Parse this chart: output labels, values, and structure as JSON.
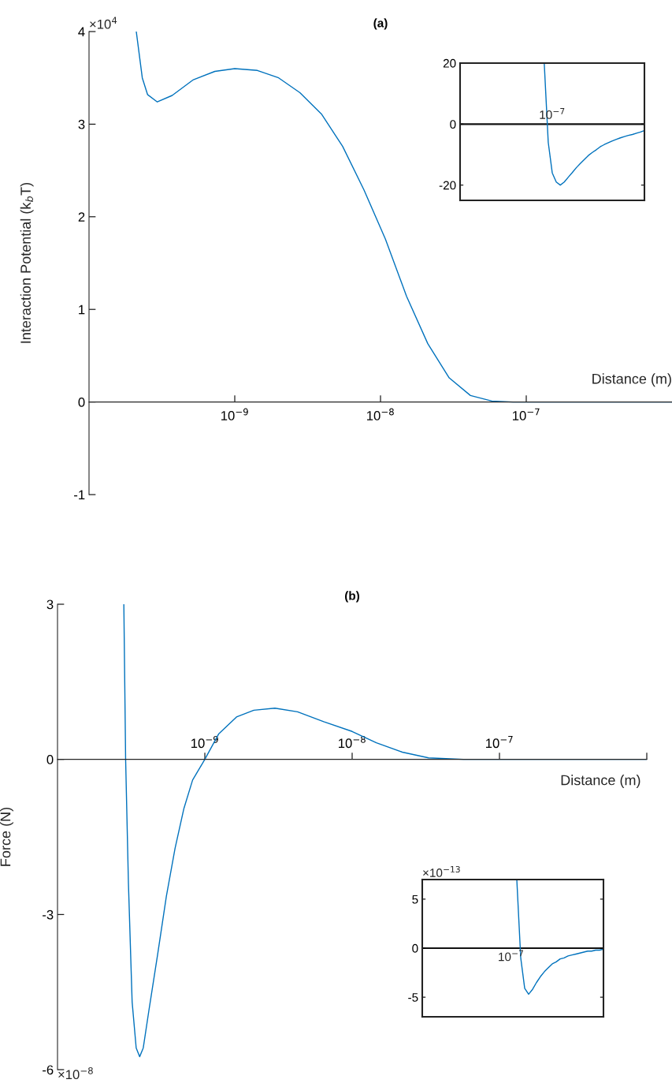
{
  "chart_data": [
    {
      "type": "line",
      "title": "(a)",
      "xlabel": "Distance (m)",
      "ylabel": "Interaction Potential (k$_{b}$T)",
      "annotations": [
        "×10$^{4}$"
      ],
      "log": "x",
      "grid": false,
      "xlim": [
        1e-10,
        1e-06
      ],
      "xticks": [
        {
          "value": 1e-09,
          "label": "10$^{−9}$"
        },
        {
          "value": 1e-08,
          "label": "10$^{−8}$"
        },
        {
          "value": 1e-07,
          "label": "10$^{−7}$"
        }
      ],
      "ylim": [
        -1,
        4
      ],
      "yticks": [
        -1,
        0,
        1,
        2,
        3,
        4
      ],
      "series": [
        {
          "color": "#0072bd",
          "x": [
            2.11e-10,
            2.32e-10,
            2.52e-10,
            2.94e-10,
            3.72e-10,
            5.2e-10,
            7.3e-10,
            1e-09,
            1.43e-09,
            2e-09,
            2.8e-09,
            3.93e-09,
            5.5e-09,
            7.7e-09,
            1.08e-08,
            1.51e-08,
            2.11e-08,
            2.96e-08,
            4.14e-08,
            5.8e-08,
            8.1e-08,
            1e-06
          ],
          "values": [
            4.0,
            3.5,
            3.32,
            3.24,
            3.31,
            3.48,
            3.57,
            3.6,
            3.58,
            3.5,
            3.34,
            3.11,
            2.76,
            2.29,
            1.76,
            1.14,
            0.63,
            0.26,
            0.07,
            0.01,
            0,
            0
          ]
        }
      ]
    },
    {
      "type": "line",
      "annotations": [
        "10$^{−7}$"
      ],
      "grid": false,
      "categories": [
        null,
        null,
        null,
        null,
        null,
        null,
        null,
        null,
        null,
        null,
        null,
        null,
        null,
        null,
        null,
        null,
        null,
        null,
        null,
        null,
        null,
        null,
        null,
        null,
        null,
        null,
        null,
        null,
        null,
        null,
        null,
        null,
        null,
        null,
        null,
        null,
        null,
        null,
        null,
        null,
        null,
        null,
        null,
        null,
        null,
        null,
        null
      ],
      "ylim": [
        -25,
        20
      ],
      "yticks": [
        -20,
        0,
        20
      ],
      "ref_lines": [
        {
          "axis": "y",
          "value": 0,
          "color": "#111111"
        }
      ],
      "series": [
        {
          "color": "#0072bd",
          "values": [
            null,
            null,
            null,
            null,
            null,
            null,
            null,
            null,
            null,
            null,
            null,
            null,
            null,
            null,
            null,
            null,
            null,
            null,
            null,
            null,
            null,
            20,
            -6,
            -16,
            -19,
            -20,
            -19,
            -17.4,
            -15.9,
            -14.3,
            -12.9,
            -11.6,
            -10.3,
            -9.3,
            -8.4,
            -7.4,
            -6.7,
            -6.1,
            -5.5,
            -5.0,
            -4.5,
            -4.1,
            -3.7,
            -3.4,
            -3.0,
            -2.6,
            -2.1
          ]
        }
      ]
    },
    {
      "type": "line",
      "title": "(b)",
      "xlabel": "Distance (m)",
      "ylabel": "Force (N)",
      "annotations": [
        "×10$^{−8}$"
      ],
      "log": "x",
      "grid": false,
      "xlim": [
        1e-10,
        1e-06
      ],
      "xticks": [
        {
          "value": 1e-09,
          "label": "10$^{−9}$"
        },
        {
          "value": 1e-08,
          "label": "10$^{−8}$"
        },
        {
          "value": 1e-07,
          "label": "10$^{−7}$"
        },
        {
          "value": 1e-06,
          "label": null
        }
      ],
      "ylim": [
        -6,
        3
      ],
      "yticks": [
        -6,
        -3,
        0,
        3
      ],
      "series": [
        {
          "color": "#0072bd",
          "x": [
            2.82e-10,
            2.9e-10,
            3.03e-10,
            3.21e-10,
            3.42e-10,
            3.61e-10,
            3.82e-10,
            4.17e-10,
            4.79e-10,
            5.48e-10,
            6.28e-10,
            7.21e-10,
            8.26e-10,
            1e-09,
            1.24e-09,
            1.64e-09,
            2.15e-09,
            2.99e-09,
            4.26e-09,
            6.41e-09,
            1e-08,
            1.46e-08,
            2.19e-08,
            3.3e-08,
            5.71e-08,
            1e-06
          ],
          "values": [
            3.0,
            0,
            -2.4,
            -4.69,
            -5.58,
            -5.75,
            -5.58,
            -4.86,
            -3.76,
            -2.65,
            -1.72,
            -0.95,
            -0.4,
            0,
            0.49,
            0.82,
            0.95,
            0.99,
            0.92,
            0.73,
            0.54,
            0.32,
            0.14,
            0.03,
            0,
            0
          ]
        }
      ]
    },
    {
      "type": "line",
      "annotations": [
        "×10$^{−13}$",
        "10$^{−7}$"
      ],
      "grid": false,
      "categories": [
        null,
        null,
        null,
        null,
        null,
        null,
        null,
        null,
        null,
        null,
        null,
        null,
        null,
        null,
        null,
        null,
        null,
        null,
        null,
        null,
        null,
        null,
        null,
        null,
        null,
        null,
        null,
        null,
        null,
        null,
        null,
        null,
        null,
        null,
        null,
        null,
        null,
        null,
        null,
        null,
        null,
        null,
        null,
        null,
        null,
        null,
        null
      ],
      "ylim": [
        -7,
        7
      ],
      "yticks": [
        -5,
        0,
        5
      ],
      "ref_lines": [
        {
          "axis": "y",
          "value": 0,
          "color": "#111111"
        }
      ],
      "series": [
        {
          "color": "#0072bd",
          "values": [
            null,
            null,
            null,
            null,
            null,
            null,
            null,
            null,
            null,
            null,
            null,
            null,
            null,
            null,
            null,
            null,
            null,
            null,
            null,
            null,
            null,
            null,
            null,
            null,
            7.0,
            -1.0,
            -4.1,
            -4.7,
            -4.2,
            -3.5,
            -2.9,
            -2.4,
            -2.0,
            -1.6,
            -1.4,
            -1.1,
            -1.0,
            -0.8,
            -0.7,
            -0.6,
            -0.5,
            -0.4,
            -0.3,
            -0.3,
            -0.2,
            -0.2,
            -0.1
          ]
        }
      ]
    }
  ]
}
